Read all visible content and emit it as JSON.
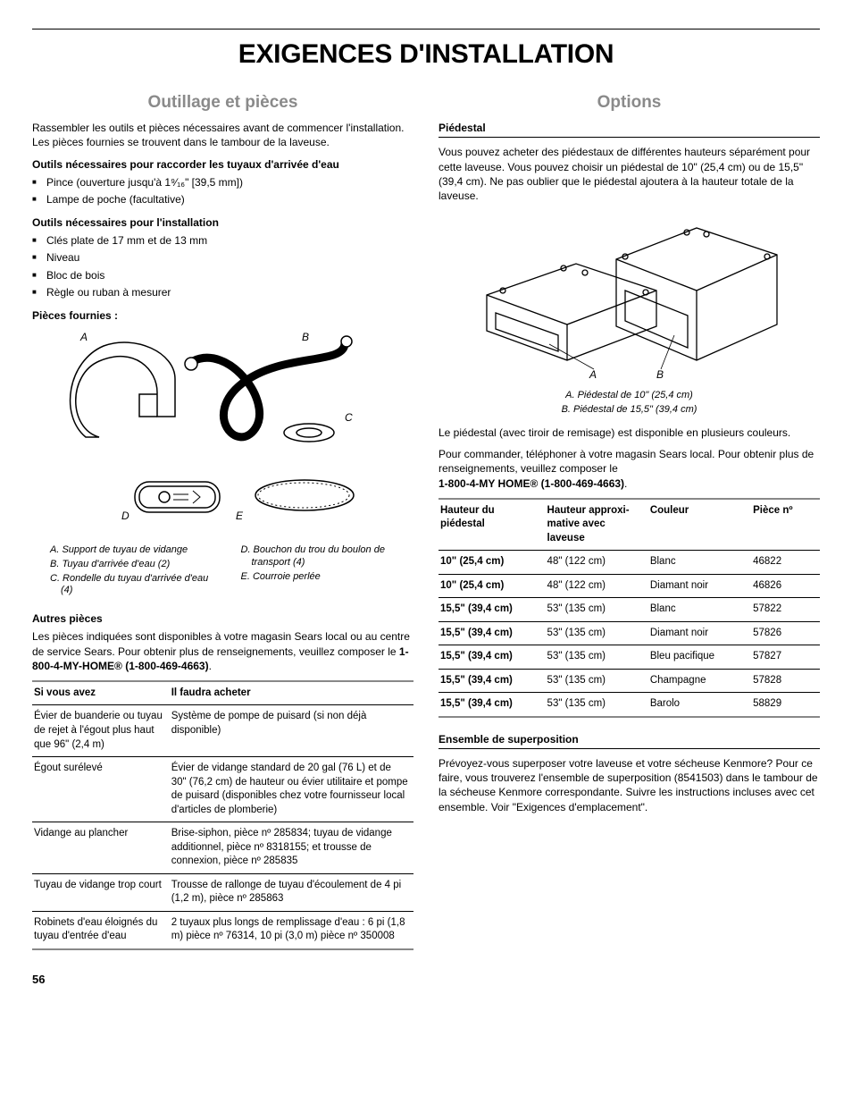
{
  "page_number": "56",
  "main_title": "EXIGENCES D'INSTALLATION",
  "left": {
    "section_title": "Outillage et pièces",
    "intro": "Rassembler les outils et pièces nécessaires avant de commencer l'installation. Les pièces fournies se trouvent dans le tambour de la laveuse.",
    "tools_water_hdr": "Outils nécessaires pour raccorder les tuyaux d'arrivée d'eau",
    "tools_water": [
      "Pince (ouverture jusqu'à 1⁹⁄₁₆\" [39,5 mm])",
      "Lampe de poche (facultative)"
    ],
    "tools_install_hdr": "Outils nécessaires pour l'installation",
    "tools_install": [
      "Clés plate de 17 mm et de 13 mm",
      "Niveau",
      "Bloc de bois",
      "Règle ou ruban à mesurer"
    ],
    "parts_hdr": "Pièces fournies :",
    "labels": {
      "A": "A",
      "B": "B",
      "C": "C",
      "D": "D",
      "E": "E"
    },
    "legend": {
      "A": "A. Support de tuyau de vidange",
      "B": "B. Tuyau d'arrivée d'eau (2)",
      "C": "C. Rondelle du tuyau d'arrivée d'eau (4)",
      "D": "D. Bouchon du trou du boulon de transport (4)",
      "E": "E. Courroie perlée"
    },
    "other_parts_hdr": "Autres pièces",
    "other_parts_intro_1": "Les pièces indiquées sont disponibles à votre magasin Sears local ou au centre de service Sears. Pour obtenir plus de renseignements, veuillez composer le ",
    "other_parts_phone": "1-800-4-MY-HOME® (1-800-469-4663)",
    "period": ".",
    "other_table": {
      "headers": [
        "Si vous avez",
        "Il faudra acheter"
      ],
      "rows": [
        [
          "Évier de buanderie ou tuyau de rejet à l'égout plus haut que 96\" (2,4 m)",
          "Système de pompe de puisard (si non déjà disponible)"
        ],
        [
          "Égout surélevé",
          "Évier de vidange standard de 20 gal (76 L) et de 30\" (76,2 cm) de hauteur ou évier utilitaire et pompe de puisard (disponibles chez votre fournisseur local d'articles de plomberie)"
        ],
        [
          "Vidange au plancher",
          "Brise-siphon, pièce nº 285834; tuyau de vidange additionnel, pièce nº 8318155; et trousse de connexion, pièce nº 285835"
        ],
        [
          "Tuyau de vidange trop court",
          "Trousse de rallonge de tuyau d'écoulement de 4 pi (1,2 m), pièce nº 285863"
        ],
        [
          "Robinets d'eau éloignés du tuyau d'entrée d'eau",
          "2 tuyaux plus longs de remplissage d'eau : 6 pi (1,8 m) pièce nº 76314, 10 pi (3,0 m) pièce nº 350008"
        ]
      ]
    }
  },
  "right": {
    "section_title": "Options",
    "pedestal_hdr": "Piédestal",
    "pedestal_p1": "Vous pouvez acheter des piédestaux de différentes hauteurs séparément pour cette laveuse. Vous pouvez choisir un piédestal de 10\" (25,4 cm) ou de 15,5\" (39,4 cm). Ne pas oublier que le piédestal ajoutera à la hauteur totale de la laveuse.",
    "diagram_labels": {
      "A": "A",
      "B": "B"
    },
    "caption": {
      "A": "A. Piédestal de 10\" (25,4 cm)",
      "B": "B. Piédestal de 15,5\" (39,4 cm)"
    },
    "pedestal_p2": "Le piédestal (avec tiroir de remisage) est disponible en plusieurs couleurs.",
    "pedestal_p3_a": "Pour commander, téléphoner à votre magasin Sears local. Pour obtenir plus de renseignements, veuillez composer le ",
    "pedestal_p3_phone": "1-800-4-MY HOME® (1-800-469-4663)",
    "pedestal_table": {
      "headers": [
        "Hauteur du piédestal",
        "Hauteur approxi-mative avec laveuse",
        "Couleur",
        "Pièce nº"
      ],
      "rows": [
        [
          "10\" (25,4 cm)",
          "48\" (122 cm)",
          "Blanc",
          "46822"
        ],
        [
          "10\" (25,4 cm)",
          "48\" (122 cm)",
          "Diamant noir",
          "46826"
        ],
        [
          "15,5\" (39,4 cm)",
          "53\" (135 cm)",
          "Blanc",
          "57822"
        ],
        [
          "15,5\" (39,4 cm)",
          "53\" (135 cm)",
          "Diamant noir",
          "57826"
        ],
        [
          "15,5\" (39,4 cm)",
          "53\" (135 cm)",
          "Bleu pacifique",
          "57827"
        ],
        [
          "15,5\" (39,4 cm)",
          "53\" (135 cm)",
          "Champagne",
          "57828"
        ],
        [
          "15,5\" (39,4 cm)",
          "53\" (135 cm)",
          "Barolo",
          "58829"
        ]
      ]
    },
    "stack_hdr": "Ensemble de superposition",
    "stack_p": "Prévoyez-vous superposer votre laveuse et votre sécheuse Kenmore? Pour ce faire, vous trouverez l'ensemble de superposition (8541503) dans le tambour de la sécheuse Kenmore correspondante. Suivre les instructions incluses avec cet ensemble. Voir \"Exigences d'emplacement\"."
  }
}
